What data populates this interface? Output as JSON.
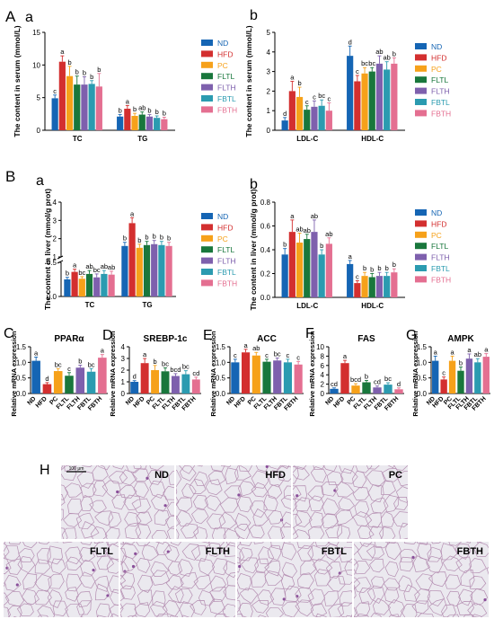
{
  "groups": [
    "ND",
    "HFD",
    "PC",
    "FLTL",
    "FLTH",
    "FBTL",
    "FBTH"
  ],
  "colors": [
    "#1565b4",
    "#d32f2f",
    "#f6a11a",
    "#19773c",
    "#7e60ad",
    "#2b9bb0",
    "#e46f91"
  ],
  "section_labels": {
    "A": "A",
    "B": "B",
    "C": "C",
    "D": "D",
    "E": "E",
    "F": "F",
    "G": "G",
    "H": "H"
  },
  "sub_labels": {
    "Aa": "a",
    "Ab": "b",
    "Ba": "a",
    "Bb": "b"
  },
  "histology": {
    "scale_label": "100 μm",
    "panel_labels": [
      "ND",
      "HFD",
      "PC",
      "FLTL",
      "FLTH",
      "FBTL",
      "FBTH"
    ]
  },
  "chart_data": [
    {
      "id": "Aa",
      "type": "bar",
      "ylabel": "The content in serum (mmol/L)",
      "ylim": [
        0,
        15
      ],
      "yticks": [
        "0",
        "5",
        "10",
        "15"
      ],
      "categories": [
        "TC",
        "TG"
      ],
      "legend": [
        "ND",
        "HFD",
        "PC",
        "FLTL",
        "FLTH",
        "FBTL",
        "FBTH"
      ],
      "series": [
        {
          "name": "ND",
          "values": [
            4.9,
            2.1
          ],
          "errors": [
            0.5,
            0.3
          ]
        },
        {
          "name": "HFD",
          "values": [
            10.5,
            3.3
          ],
          "errors": [
            0.9,
            0.5
          ]
        },
        {
          "name": "PC",
          "values": [
            8.3,
            2.2
          ],
          "errors": [
            1.5,
            0.4
          ]
        },
        {
          "name": "FLTL",
          "values": [
            7.0,
            2.4
          ],
          "errors": [
            1.3,
            0.4
          ]
        },
        {
          "name": "FLTH",
          "values": [
            7.0,
            2.1
          ],
          "errors": [
            1.2,
            0.3
          ]
        },
        {
          "name": "FBTL",
          "values": [
            7.1,
            1.9
          ],
          "errors": [
            0.5,
            0.3
          ]
        },
        {
          "name": "FBTH",
          "values": [
            6.7,
            1.7
          ],
          "errors": [
            2.0,
            0.3
          ]
        }
      ],
      "letters": [
        [
          "c",
          "a",
          "b",
          "b",
          "b",
          "b",
          "b"
        ],
        [
          "b",
          "a",
          "b",
          "ab",
          "b",
          "b",
          "b"
        ]
      ]
    },
    {
      "id": "Ab",
      "type": "bar",
      "ylabel": "The content in serum (mmol/L)",
      "ylim": [
        0,
        5
      ],
      "yticks": [
        "0",
        "1",
        "2",
        "3",
        "4",
        "5"
      ],
      "categories": [
        "LDL-C",
        "HDL-C"
      ],
      "legend": [
        "ND",
        "HFD",
        "PC",
        "FLTL",
        "FLTH",
        "FBTL",
        "FBTH"
      ],
      "series": [
        {
          "name": "ND",
          "values": [
            0.5,
            3.8
          ],
          "errors": [
            0.15,
            0.5
          ]
        },
        {
          "name": "HFD",
          "values": [
            2.0,
            2.5
          ],
          "errors": [
            0.5,
            0.3
          ]
        },
        {
          "name": "PC",
          "values": [
            1.7,
            2.9
          ],
          "errors": [
            0.5,
            0.3
          ]
        },
        {
          "name": "FLTL",
          "values": [
            1.05,
            3.0
          ],
          "errors": [
            0.2,
            0.2
          ]
        },
        {
          "name": "FLTH",
          "values": [
            1.2,
            3.4
          ],
          "errors": [
            0.3,
            0.4
          ]
        },
        {
          "name": "FBTL",
          "values": [
            1.25,
            3.1
          ],
          "errors": [
            0.3,
            0.4
          ]
        },
        {
          "name": "FBTH",
          "values": [
            1.0,
            3.4
          ],
          "errors": [
            0.4,
            0.3
          ]
        }
      ],
      "letters": [
        [
          "d",
          "a",
          "b",
          "c",
          "c",
          "bc",
          "c"
        ],
        [
          "d",
          "c",
          "bc",
          "bc",
          "ab",
          "ab",
          "b"
        ]
      ]
    },
    {
      "id": "Ba",
      "type": "bar",
      "ylabel": "The content in liver (mmol/g prot)",
      "axis_break": true,
      "yticks": [
        "0.0",
        "0.5",
        "1",
        "2",
        "3",
        "4"
      ],
      "categories": [
        "TC",
        "TG"
      ],
      "legend": [
        "ND",
        "HFD",
        "PC",
        "FLTL",
        "FLTH",
        "FBTL",
        "FBTH"
      ],
      "series": [
        {
          "name": "ND",
          "values": [
            0.25,
            1.6
          ],
          "errors": [
            0.03,
            0.2
          ]
        },
        {
          "name": "HFD",
          "values": [
            0.36,
            2.85
          ],
          "errors": [
            0.04,
            0.3
          ]
        },
        {
          "name": "PC",
          "values": [
            0.26,
            1.5
          ],
          "errors": [
            0.03,
            0.2
          ]
        },
        {
          "name": "FLTL",
          "values": [
            0.33,
            1.65
          ],
          "errors": [
            0.05,
            0.2
          ]
        },
        {
          "name": "FLTH",
          "values": [
            0.28,
            1.7
          ],
          "errors": [
            0.05,
            0.2
          ]
        },
        {
          "name": "FBTL",
          "values": [
            0.33,
            1.65
          ],
          "errors": [
            0.05,
            0.2
          ]
        },
        {
          "name": "FBTH",
          "values": [
            0.32,
            1.6
          ],
          "errors": [
            0.05,
            0.2
          ]
        }
      ],
      "letters": [
        [
          "b",
          "a",
          "bc",
          "ab",
          "bc",
          "ab",
          "ab"
        ],
        [
          "b",
          "a",
          "b",
          "b",
          "b",
          "b",
          "b"
        ]
      ]
    },
    {
      "id": "Bb",
      "type": "bar",
      "ylabel": "The content in liver (mmol/g prot)",
      "ylim": [
        0,
        0.8
      ],
      "yticks": [
        "0.0",
        "0.2",
        "0.4",
        "0.6",
        "0.8"
      ],
      "categories": [
        "LDL-C",
        "HDL-C"
      ],
      "legend": [
        "ND",
        "HFD",
        "PC",
        "FLTL",
        "FLTH",
        "FBTL",
        "FBTH"
      ],
      "series": [
        {
          "name": "ND",
          "values": [
            0.36,
            0.28
          ],
          "errors": [
            0.05,
            0.03
          ]
        },
        {
          "name": "HFD",
          "values": [
            0.55,
            0.12
          ],
          "errors": [
            0.1,
            0.02
          ]
        },
        {
          "name": "PC",
          "values": [
            0.46,
            0.18
          ],
          "errors": [
            0.08,
            0.03
          ]
        },
        {
          "name": "FLTL",
          "values": [
            0.49,
            0.17
          ],
          "errors": [
            0.04,
            0.03
          ]
        },
        {
          "name": "FLTH",
          "values": [
            0.55,
            0.18
          ],
          "errors": [
            0.1,
            0.03
          ]
        },
        {
          "name": "FBTL",
          "values": [
            0.36,
            0.18
          ],
          "errors": [
            0.04,
            0.03
          ]
        },
        {
          "name": "FBTH",
          "values": [
            0.45,
            0.21
          ],
          "errors": [
            0.05,
            0.03
          ]
        }
      ],
      "letters": [
        [
          "b",
          "a",
          "ab",
          "ab",
          "ab",
          "b",
          "ab"
        ],
        [
          "a",
          "c",
          "b",
          "b",
          "b",
          "b",
          "b"
        ]
      ]
    },
    {
      "id": "C",
      "type": "bar",
      "title": "PPARα",
      "ylabel": "Relative mRNA expression",
      "ylim": [
        0,
        1.5
      ],
      "yticks": [
        "0.0",
        "0.5",
        "1.0",
        "1.5"
      ],
      "categories": [
        "ND",
        "HFD",
        "PC",
        "FLTL",
        "FLTH",
        "FBTL",
        "FBTH"
      ],
      "values": [
        1.05,
        0.3,
        0.72,
        0.57,
        0.83,
        0.7,
        1.15
      ],
      "errors": [
        0.12,
        0.05,
        0.08,
        0.1,
        0.08,
        0.1,
        0.1
      ],
      "letters": [
        "a",
        "d",
        "bc",
        "c",
        "b",
        "bc",
        "a"
      ]
    },
    {
      "id": "D",
      "type": "bar",
      "title": "SREBP-1c",
      "ylabel": "Relative mRNA expression",
      "ylim": [
        0,
        4
      ],
      "yticks": [
        "0",
        "1",
        "2",
        "3",
        "4"
      ],
      "categories": [
        "ND",
        "HFD",
        "PC",
        "FLTL",
        "FLTH",
        "FBTL",
        "FBTH"
      ],
      "values": [
        1.0,
        2.6,
        2.0,
        1.9,
        1.5,
        1.65,
        1.2
      ],
      "errors": [
        0.1,
        0.4,
        0.4,
        0.3,
        0.2,
        0.3,
        0.2
      ],
      "letters": [
        "d",
        "a",
        "b",
        "bc",
        "bcd",
        "bc",
        "cd"
      ]
    },
    {
      "id": "E",
      "type": "bar",
      "title": "ACC",
      "ylabel": "Relative mRNA expression",
      "ylim": [
        0,
        1.5
      ],
      "yticks": [
        "0.0",
        "0.5",
        "1.0",
        "1.5"
      ],
      "categories": [
        "ND",
        "HFD",
        "PC",
        "FLTL",
        "FLTH",
        "FBTL",
        "FBTH"
      ],
      "values": [
        1.0,
        1.32,
        1.22,
        1.02,
        1.06,
        1.0,
        0.93
      ],
      "errors": [
        0.1,
        0.1,
        0.1,
        0.08,
        0.08,
        0.1,
        0.1
      ],
      "letters": [
        "c",
        "a",
        "ab",
        "c",
        "bc",
        "c",
        "c"
      ]
    },
    {
      "id": "F",
      "type": "bar",
      "title": "FAS",
      "ylabel": "Relative mRNA expression",
      "ylim": [
        0,
        10
      ],
      "yticks": [
        "0",
        "2",
        "4",
        "6",
        "8",
        "10"
      ],
      "categories": [
        "ND",
        "HFD",
        "PC",
        "FLTL",
        "FLTH",
        "FBTL",
        "FBTH"
      ],
      "values": [
        1.0,
        6.5,
        1.7,
        2.4,
        1.3,
        1.9,
        0.9
      ],
      "errors": [
        0.2,
        0.6,
        0.4,
        0.4,
        0.3,
        0.4,
        0.3
      ],
      "letters": [
        "cd",
        "a",
        "bcd",
        "b",
        "cd",
        "bc",
        "d"
      ]
    },
    {
      "id": "G",
      "type": "bar",
      "title": "AMPK",
      "ylabel": "Relative mRNA expression",
      "ylim": [
        0,
        1.5
      ],
      "yticks": [
        "0.0",
        "0.5",
        "1.0",
        "1.5"
      ],
      "categories": [
        "ND",
        "HFD",
        "PC",
        "FLTL",
        "FLTH",
        "FBTL",
        "FBTH"
      ],
      "values": [
        1.05,
        0.45,
        1.05,
        0.73,
        1.12,
        1.0,
        1.18
      ],
      "errors": [
        0.15,
        0.08,
        0.15,
        0.12,
        0.15,
        0.12,
        0.1
      ],
      "letters": [
        "a",
        "c",
        "a",
        "b",
        "a",
        "ab",
        "a"
      ]
    }
  ]
}
